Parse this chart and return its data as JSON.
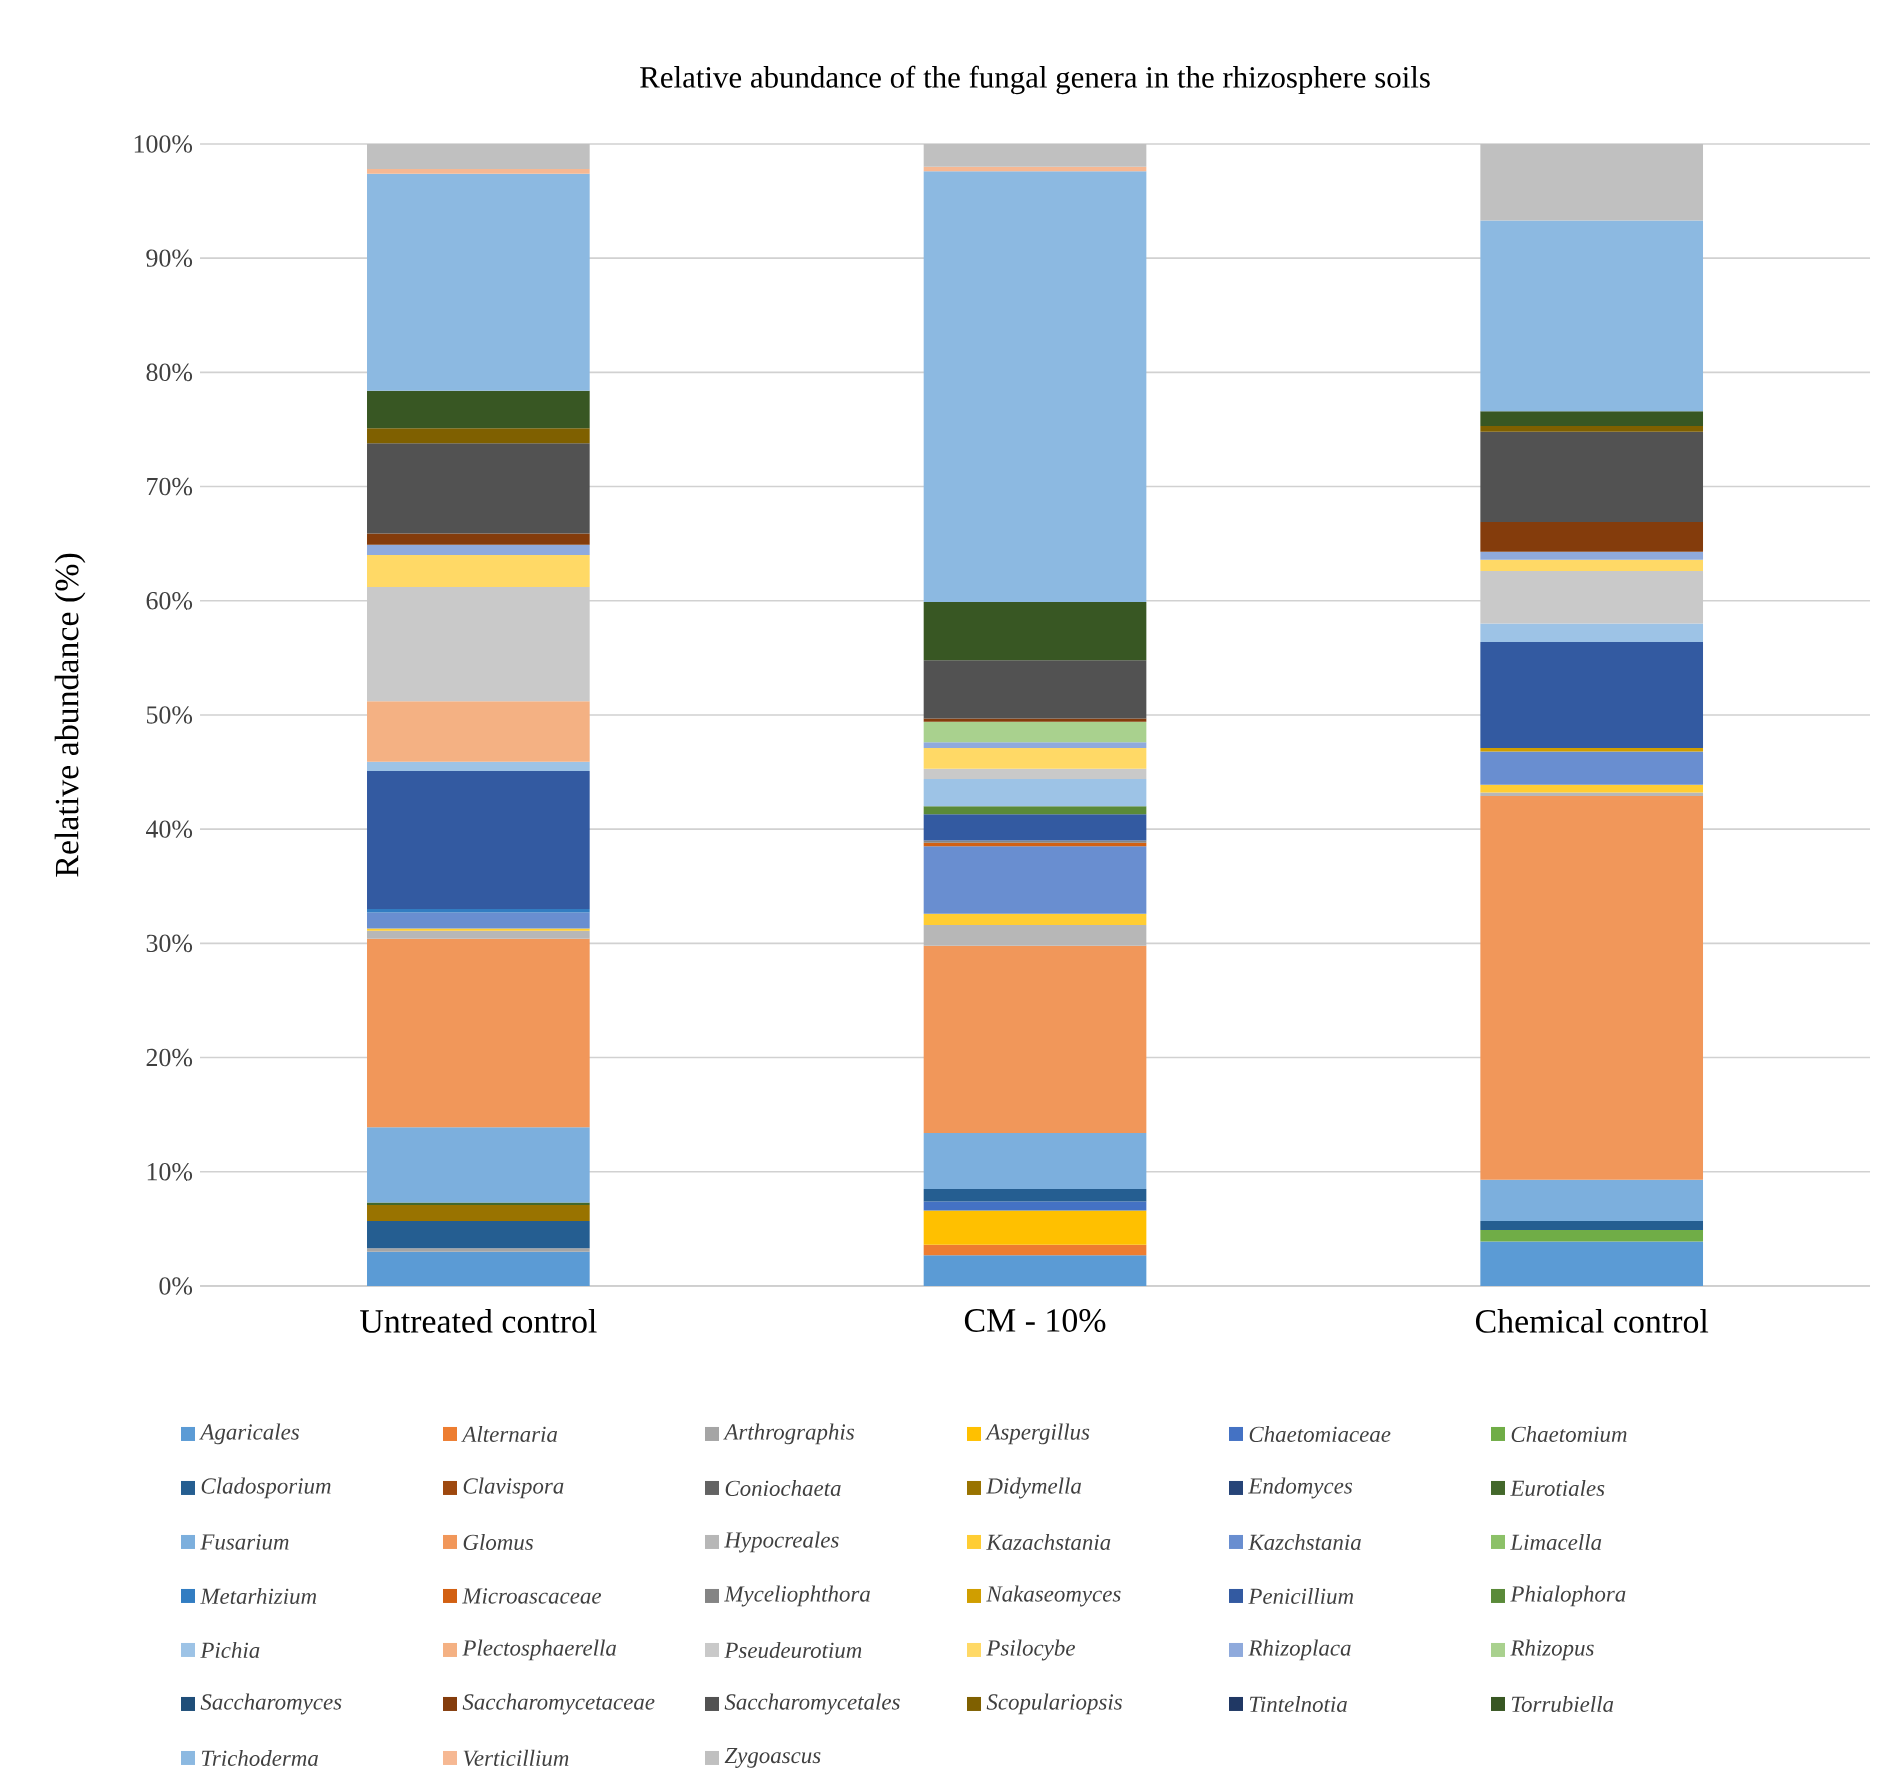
{
  "chart_data": {
    "type": "bar",
    "stacked": true,
    "title": "Relative abundance of the fungal genera in the rhizosphere soils",
    "ylabel": "Relative abundance (%)",
    "categories": [
      "Untreated control",
      "CM - 10%",
      "Chemical control"
    ],
    "ylim": [
      0,
      100
    ],
    "yticks": [
      {
        "value": 0,
        "label": "0%"
      },
      {
        "value": 10,
        "label": "10%"
      },
      {
        "value": 20,
        "label": "20%"
      },
      {
        "value": 30,
        "label": "30%"
      },
      {
        "value": 40,
        "label": "40%"
      },
      {
        "value": 50,
        "label": "50%"
      },
      {
        "value": 60,
        "label": "60%"
      },
      {
        "value": 70,
        "label": "70%"
      },
      {
        "value": 80,
        "label": "80%"
      },
      {
        "value": 90,
        "label": "90%"
      },
      {
        "value": 100,
        "label": "100%"
      }
    ],
    "grid": "y",
    "legend": "bottom",
    "series": [
      {
        "name": "Agaricales",
        "color": "#5b9bd5",
        "values": [
          3.0,
          2.7,
          3.9
        ]
      },
      {
        "name": "Alternaria",
        "color": "#ed7d31",
        "values": [
          null,
          0.9,
          null
        ]
      },
      {
        "name": "Arthrographis",
        "color": "#a5a5a5",
        "values": [
          0.3,
          null,
          null
        ]
      },
      {
        "name": "Aspergillus",
        "color": "#ffc000",
        "values": [
          null,
          3.0,
          null
        ]
      },
      {
        "name": "Chaetomiaceae",
        "color": "#4472c4",
        "values": [
          null,
          0.8,
          null
        ]
      },
      {
        "name": "Chaetomium",
        "color": "#70ad47",
        "values": [
          null,
          null,
          1.0
        ]
      },
      {
        "name": "Cladosporium",
        "color": "#255e91",
        "values": [
          2.4,
          1.1,
          0.8
        ]
      },
      {
        "name": "Clavispora",
        "color": "#9e480e",
        "values": [
          null,
          null,
          null
        ]
      },
      {
        "name": "Coniochaeta",
        "color": "#636363",
        "values": [
          null,
          null,
          null
        ]
      },
      {
        "name": "Didymella",
        "color": "#997300",
        "values": [
          1.4,
          null,
          null
        ]
      },
      {
        "name": "Endomyces",
        "color": "#264478",
        "values": [
          null,
          null,
          null
        ]
      },
      {
        "name": "Eurotiales",
        "color": "#43682b",
        "values": [
          0.2,
          null,
          null
        ]
      },
      {
        "name": "Fusarium",
        "color": "#7cafdd",
        "values": [
          6.6,
          4.9,
          3.6
        ]
      },
      {
        "name": "Glomus",
        "color": "#f1975a",
        "values": [
          16.5,
          16.4,
          33.6
        ]
      },
      {
        "name": "Hypocreales",
        "color": "#b7b7b7",
        "values": [
          0.7,
          1.8,
          0.3
        ]
      },
      {
        "name": "Kazachstania",
        "color": "#ffcd33",
        "values": [
          0.2,
          1.0,
          0.7
        ]
      },
      {
        "name": "Kazchstania",
        "color": "#698ed0",
        "values": [
          1.4,
          5.9,
          2.9
        ]
      },
      {
        "name": "Limacella",
        "color": "#8cc168",
        "values": [
          null,
          null,
          null
        ]
      },
      {
        "name": "Metarhizium",
        "color": "#327dc2",
        "values": [
          0.3,
          null,
          null
        ]
      },
      {
        "name": "Microascaceae",
        "color": "#d26012",
        "values": [
          null,
          0.3,
          null
        ]
      },
      {
        "name": "Myceliophthora",
        "color": "#848484",
        "values": [
          null,
          0.2,
          null
        ]
      },
      {
        "name": "Nakaseomyces",
        "color": "#d09e00",
        "values": [
          null,
          null,
          0.3
        ]
      },
      {
        "name": "Penicillium",
        "color": "#335aa1",
        "values": [
          12.1,
          2.3,
          9.3
        ]
      },
      {
        "name": "Phialophora",
        "color": "#5a8a39",
        "values": [
          null,
          0.7,
          null
        ]
      },
      {
        "name": "Pichia",
        "color": "#9dc3e6",
        "values": [
          0.8,
          2.4,
          1.6
        ]
      },
      {
        "name": "Plectosphaerella",
        "color": "#f4b183",
        "values": [
          5.3,
          null,
          null
        ]
      },
      {
        "name": "Pseudeurotium",
        "color": "#c9c9c9",
        "values": [
          10.0,
          0.9,
          4.6
        ]
      },
      {
        "name": "Psilocybe",
        "color": "#ffd966",
        "values": [
          2.8,
          1.8,
          1.0
        ]
      },
      {
        "name": "Rhizoplaca",
        "color": "#8faadc",
        "values": [
          0.9,
          0.5,
          0.7
        ]
      },
      {
        "name": "Rhizopus",
        "color": "#a9d18e",
        "values": [
          null,
          1.8,
          null
        ]
      },
      {
        "name": "Saccharomyces",
        "color": "#1f4e79",
        "values": [
          null,
          null,
          null
        ]
      },
      {
        "name": "Saccharomycetaceae",
        "color": "#843c0c",
        "values": [
          1.0,
          0.3,
          2.6
        ]
      },
      {
        "name": "Saccharomycetales",
        "color": "#525252",
        "values": [
          7.9,
          5.1,
          7.9
        ]
      },
      {
        "name": "Scopulariopsis",
        "color": "#7f6000",
        "values": [
          1.3,
          null,
          0.5
        ]
      },
      {
        "name": "Tintelnotia",
        "color": "#203864",
        "values": [
          null,
          null,
          null
        ]
      },
      {
        "name": "Torrubiella",
        "color": "#385723",
        "values": [
          3.3,
          5.1,
          1.3
        ]
      },
      {
        "name": "Trichoderma",
        "color": "#8cb9e1",
        "values": [
          19.0,
          37.7,
          16.7
        ]
      },
      {
        "name": "Verticillium",
        "color": "#f6b893",
        "values": [
          0.4,
          0.4,
          null
        ]
      },
      {
        "name": "Zygoascus",
        "color": "#c0c0c0",
        "values": [
          2.2,
          2.0,
          6.7
        ]
      }
    ]
  }
}
